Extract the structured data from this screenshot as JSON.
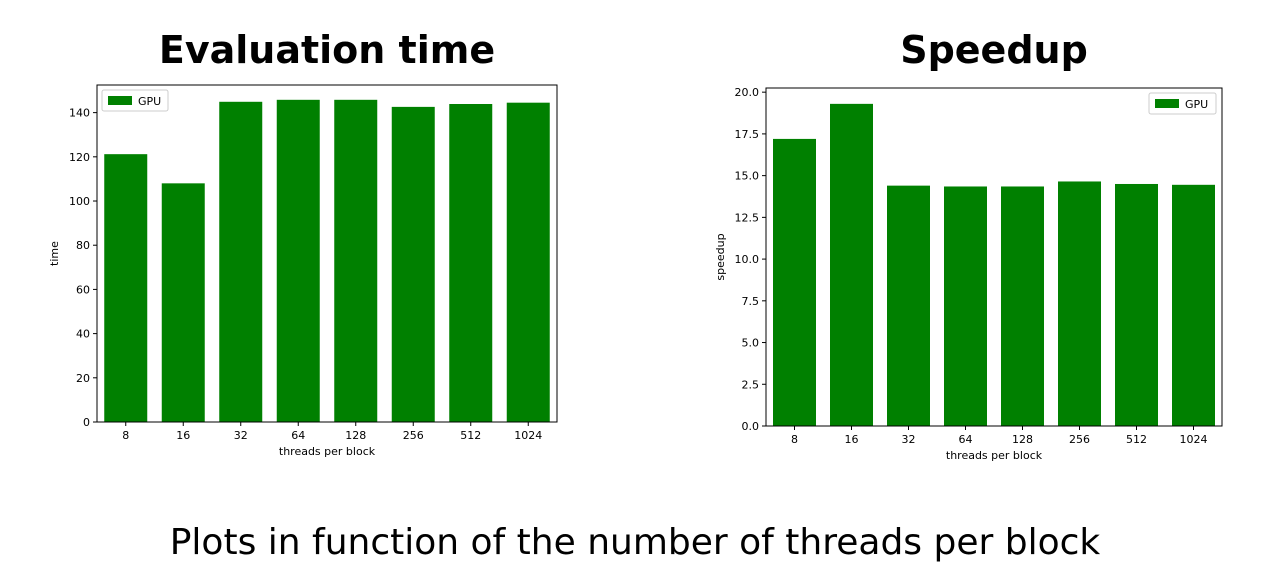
{
  "caption": "Plots in function of the number of threads per block",
  "colors": {
    "bar": "#008000"
  },
  "chart_data": [
    {
      "type": "bar",
      "title": "Evaluation time",
      "xlabel": "threads per block",
      "ylabel": "time",
      "categories": [
        "8",
        "16",
        "32",
        "64",
        "128",
        "256",
        "512",
        "1024"
      ],
      "series": [
        {
          "name": "GPU",
          "values": [
            121.2,
            108.0,
            144.9,
            145.8,
            145.8,
            142.6,
            143.9,
            144.5
          ]
        }
      ],
      "ylim": [
        0,
        152.5
      ],
      "yticks": [
        0,
        20,
        40,
        60,
        80,
        100,
        120,
        140
      ],
      "ytick_labels": [
        "0",
        "20",
        "40",
        "60",
        "80",
        "100",
        "120",
        "140"
      ],
      "legend": "top-left",
      "grid": false
    },
    {
      "type": "bar",
      "title": "Speedup",
      "xlabel": "threads per block",
      "ylabel": "speedup",
      "categories": [
        "8",
        "16",
        "32",
        "64",
        "128",
        "256",
        "512",
        "1024"
      ],
      "series": [
        {
          "name": "GPU",
          "values": [
            17.2,
            19.3,
            14.4,
            14.35,
            14.35,
            14.65,
            14.5,
            14.45
          ]
        }
      ],
      "ylim": [
        0,
        20.25
      ],
      "yticks": [
        0,
        2.5,
        5,
        7.5,
        10,
        12.5,
        15,
        17.5,
        20
      ],
      "ytick_labels": [
        "0.0",
        "2.5",
        "5.0",
        "7.5",
        "10.0",
        "12.5",
        "15.0",
        "17.5",
        "20.0"
      ],
      "legend": "top-right",
      "grid": false
    }
  ]
}
